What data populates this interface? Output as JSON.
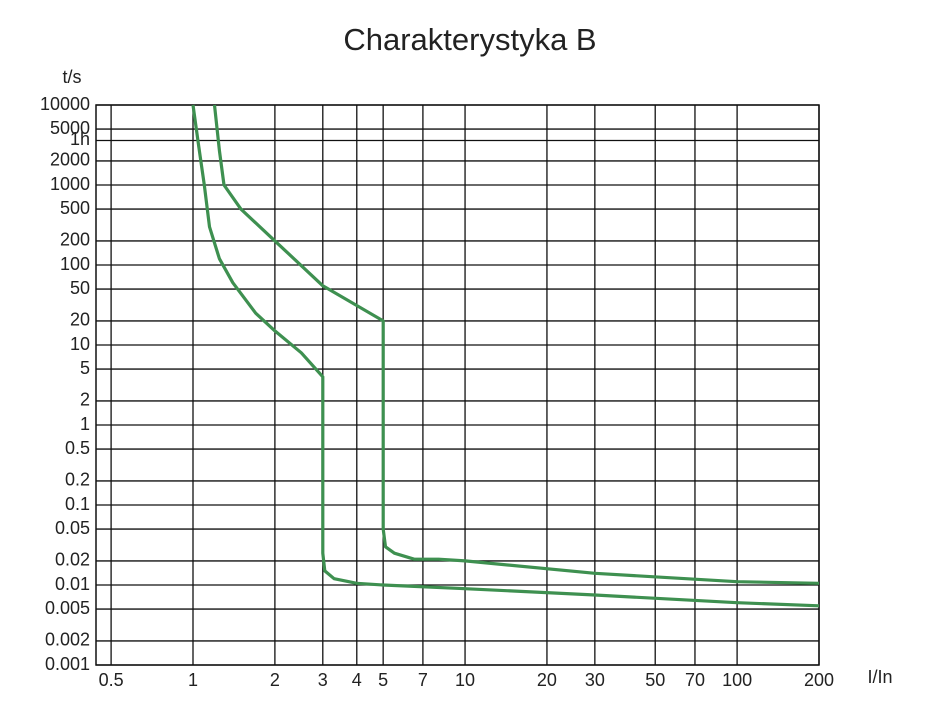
{
  "chart_data": {
    "type": "line",
    "title": "Charakterystyka B",
    "y_label": "t/s",
    "x_label": "I/In",
    "xscale": "log",
    "yscale": "log",
    "grid": true,
    "xlim": [
      0.44,
      200
    ],
    "ylim": [
      0.001,
      10000
    ],
    "xticks": [
      0.5,
      1,
      2,
      3,
      4,
      5,
      7,
      10,
      20,
      30,
      50,
      70,
      100,
      200
    ],
    "yticks": [
      10000,
      5000,
      {
        "value": 3600,
        "label": "1h"
      },
      2000,
      1000,
      500,
      200,
      100,
      50,
      20,
      10,
      5,
      2,
      1,
      0.5,
      0.2,
      0.1,
      0.05,
      0.02,
      0.01,
      0.005,
      0.002,
      0.001
    ],
    "series": [
      {
        "color": "#3e9050",
        "x": [
          1,
          1.05,
          1.1,
          1.15,
          1.25,
          1.4,
          1.7,
          2,
          2.5,
          3,
          3,
          3.05,
          3.3,
          4,
          5,
          10,
          30,
          100,
          200
        ],
        "values": [
          10000,
          3000,
          1000,
          300,
          120,
          60,
          25,
          15,
          8,
          4,
          0.025,
          0.015,
          0.012,
          0.0105,
          0.01,
          0.009,
          0.0075,
          0.006,
          0.0055
        ]
      },
      {
        "color": "#3e9050",
        "x": [
          1.2,
          1.25,
          1.3,
          1.5,
          2,
          3,
          5,
          5,
          5.1,
          5.5,
          6.5,
          8,
          10,
          30,
          100,
          200
        ],
        "values": [
          10000,
          2700,
          1000,
          500,
          200,
          55,
          20,
          0.05,
          0.03,
          0.025,
          0.021,
          0.021,
          0.02,
          0.014,
          0.011,
          0.0105
        ]
      }
    ]
  }
}
